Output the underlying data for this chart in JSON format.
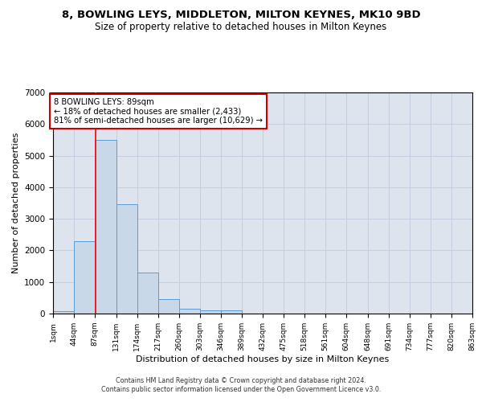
{
  "title": "8, BOWLING LEYS, MIDDLETON, MILTON KEYNES, MK10 9BD",
  "subtitle": "Size of property relative to detached houses in Milton Keynes",
  "xlabel": "Distribution of detached houses by size in Milton Keynes",
  "ylabel": "Number of detached properties",
  "bar_values": [
    80,
    2280,
    5500,
    3450,
    1310,
    460,
    165,
    90,
    90,
    0,
    0,
    0,
    0,
    0,
    0,
    0,
    0,
    0,
    0,
    0
  ],
  "bin_edges": [
    1,
    44,
    87,
    131,
    174,
    217,
    260,
    303,
    346,
    389,
    432,
    475,
    518,
    561,
    604,
    648,
    691,
    734,
    777,
    820,
    863
  ],
  "tick_labels": [
    "1sqm",
    "44sqm",
    "87sqm",
    "131sqm",
    "174sqm",
    "217sqm",
    "260sqm",
    "303sqm",
    "346sqm",
    "389sqm",
    "432sqm",
    "475sqm",
    "518sqm",
    "561sqm",
    "604sqm",
    "648sqm",
    "691sqm",
    "734sqm",
    "777sqm",
    "820sqm",
    "863sqm"
  ],
  "bar_color": "#c8d8e8",
  "bar_edgecolor": "#5b9bd5",
  "grid_color": "#c8cce0",
  "bg_color": "#dde4ee",
  "red_line_x": 89,
  "annotation_text": "8 BOWLING LEYS: 89sqm\n← 18% of detached houses are smaller (2,433)\n81% of semi-detached houses are larger (10,629) →",
  "annotation_box_color": "#ffffff",
  "annotation_border_color": "#cc0000",
  "footer_line1": "Contains HM Land Registry data © Crown copyright and database right 2024.",
  "footer_line2": "Contains public sector information licensed under the Open Government Licence v3.0.",
  "ylim": [
    0,
    7000
  ],
  "title_fontsize": 9.5,
  "subtitle_fontsize": 8.5
}
